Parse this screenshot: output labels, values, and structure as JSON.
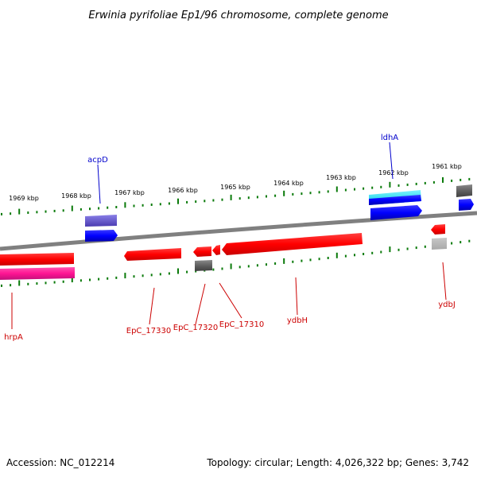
{
  "title": "Erwinia pyrifoliae Ep1/96 chromosome, complete genome",
  "footer": {
    "accession": "Accession: NC_012214",
    "stats": "Topology: circular; Length: 4,026,322 bp; Genes: 3,742"
  },
  "ticks": [
    "1969 kbp",
    "1968 kbp",
    "1967 kbp",
    "1966 kbp",
    "1965 kbp",
    "1964 kbp",
    "1963 kbp",
    "1962 kbp",
    "1961 kbp"
  ],
  "gene_labels": {
    "acpD": "acpD",
    "ldhA": "ldhA",
    "hrpA": "hrpA",
    "EpC_17330": "EpC_17330",
    "EpC_17320": "EpC_17320",
    "EpC_17310": "EpC_17310",
    "ydbH": "ydbH",
    "ydbJ": "ydbJ"
  },
  "colors": {
    "backbone": "#808080",
    "tick": "#0a7a0a",
    "gene_red": "#ff0000",
    "gene_blue": "#0000ff",
    "gene_magenta": "#ff1493",
    "gene_gray": "#606060",
    "gene_cyan": "#00e5ff",
    "gene_purple": "#6a5acd",
    "label_red": "#cc0000",
    "label_blue": "#0000cc"
  }
}
